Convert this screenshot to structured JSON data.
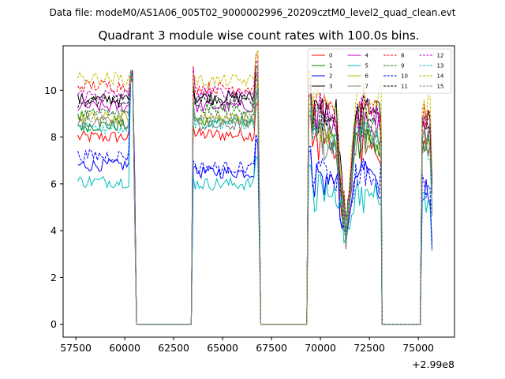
{
  "chart_data": {
    "type": "line",
    "suptitle": "Data file: modeM0/AS1A06_005T02_9000002996_20209cztM0_level2_quad_clean.evt",
    "title": "Quadrant 3 module wise count rates with 100.0s bins.",
    "xlabel": "",
    "ylabel": "",
    "x_offset_label": "+2.99e8",
    "xlim": [
      56850,
      76850
    ],
    "ylim": [
      -0.55,
      11.9
    ],
    "xticks": [
      57500,
      60000,
      62500,
      65000,
      67500,
      70000,
      72500,
      75000
    ],
    "xtick_labels": [
      "57500",
      "60000",
      "62500",
      "65000",
      "67500",
      "70000",
      "72500",
      "75000"
    ],
    "yticks": [
      0,
      2,
      4,
      6,
      8,
      10
    ],
    "ytick_labels": [
      "0",
      "2",
      "4",
      "6",
      "8",
      "10"
    ],
    "grid": false,
    "legend_position": "top-right",
    "legend_columns": 4,
    "bin_size_s": 100,
    "segments": [
      {
        "start": 57600,
        "end": 60400
      },
      {
        "start": 63500,
        "end": 66800
      },
      {
        "start": 69400,
        "end": 73100
      },
      {
        "start": 75200,
        "end": 75700
      }
    ],
    "gaps_zero": [
      {
        "start": 60600,
        "end": 63400
      },
      {
        "start": 66950,
        "end": 69300
      },
      {
        "start": 73150,
        "end": 75100
      }
    ],
    "dip_at": 71300,
    "series": [
      {
        "name": "0",
        "color": "#ff0000",
        "dash": false,
        "level_1": 8.0,
        "level_2": 8.1,
        "level_3": 7.6,
        "level_4": 7.3
      },
      {
        "name": "1",
        "color": "#008000",
        "dash": false,
        "level_1": 8.5,
        "level_2": 8.7,
        "level_3": 7.8,
        "level_4": 7.5
      },
      {
        "name": "2",
        "color": "#0000ff",
        "dash": false,
        "level_1": 6.8,
        "level_2": 6.5,
        "level_3": 6.1,
        "level_4": 5.8
      },
      {
        "name": "3",
        "color": "#000000",
        "dash": false,
        "level_1": 9.6,
        "level_2": 9.7,
        "level_3": 8.9,
        "level_4": 8.6
      },
      {
        "name": "4",
        "color": "#bf00bf",
        "dash": false,
        "level_1": 9.3,
        "level_2": 9.3,
        "level_3": 8.5,
        "level_4": 8.2
      },
      {
        "name": "5",
        "color": "#00bfbf",
        "dash": false,
        "level_1": 6.1,
        "level_2": 6.0,
        "level_3": 5.5,
        "level_4": 5.3
      },
      {
        "name": "6",
        "color": "#bfbf00",
        "dash": false,
        "level_1": 8.8,
        "level_2": 8.8,
        "level_3": 8.1,
        "level_4": 7.8
      },
      {
        "name": "7",
        "color": "#808080",
        "dash": false,
        "level_1": 8.6,
        "level_2": 8.5,
        "level_3": 7.8,
        "level_4": 7.4
      },
      {
        "name": "8",
        "color": "#ff0000",
        "dash": true,
        "level_1": 10.2,
        "level_2": 10.1,
        "level_3": 9.2,
        "level_4": 8.8
      },
      {
        "name": "9",
        "color": "#008000",
        "dash": true,
        "level_1": 9.0,
        "level_2": 9.2,
        "level_3": 8.4,
        "level_4": 8.0
      },
      {
        "name": "10",
        "color": "#0000ff",
        "dash": true,
        "level_1": 7.2,
        "level_2": 6.7,
        "level_3": 6.3,
        "level_4": 6.0
      },
      {
        "name": "11",
        "color": "#000000",
        "dash": true,
        "level_1": 9.5,
        "level_2": 9.6,
        "level_3": 8.8,
        "level_4": 8.6
      },
      {
        "name": "12",
        "color": "#bf00bf",
        "dash": true,
        "level_1": 9.8,
        "level_2": 9.9,
        "level_3": 9.0,
        "level_4": 8.7
      },
      {
        "name": "13",
        "color": "#00bfbf",
        "dash": true,
        "level_1": 8.4,
        "level_2": 8.6,
        "level_3": 7.9,
        "level_4": 7.6
      },
      {
        "name": "14",
        "color": "#bfbf00",
        "dash": true,
        "level_1": 10.5,
        "level_2": 10.4,
        "level_3": 9.5,
        "level_4": 9.2
      },
      {
        "name": "15",
        "color": "#808080",
        "dash": true,
        "level_1": 8.9,
        "level_2": 8.8,
        "level_3": 8.1,
        "level_4": 7.8
      }
    ]
  }
}
